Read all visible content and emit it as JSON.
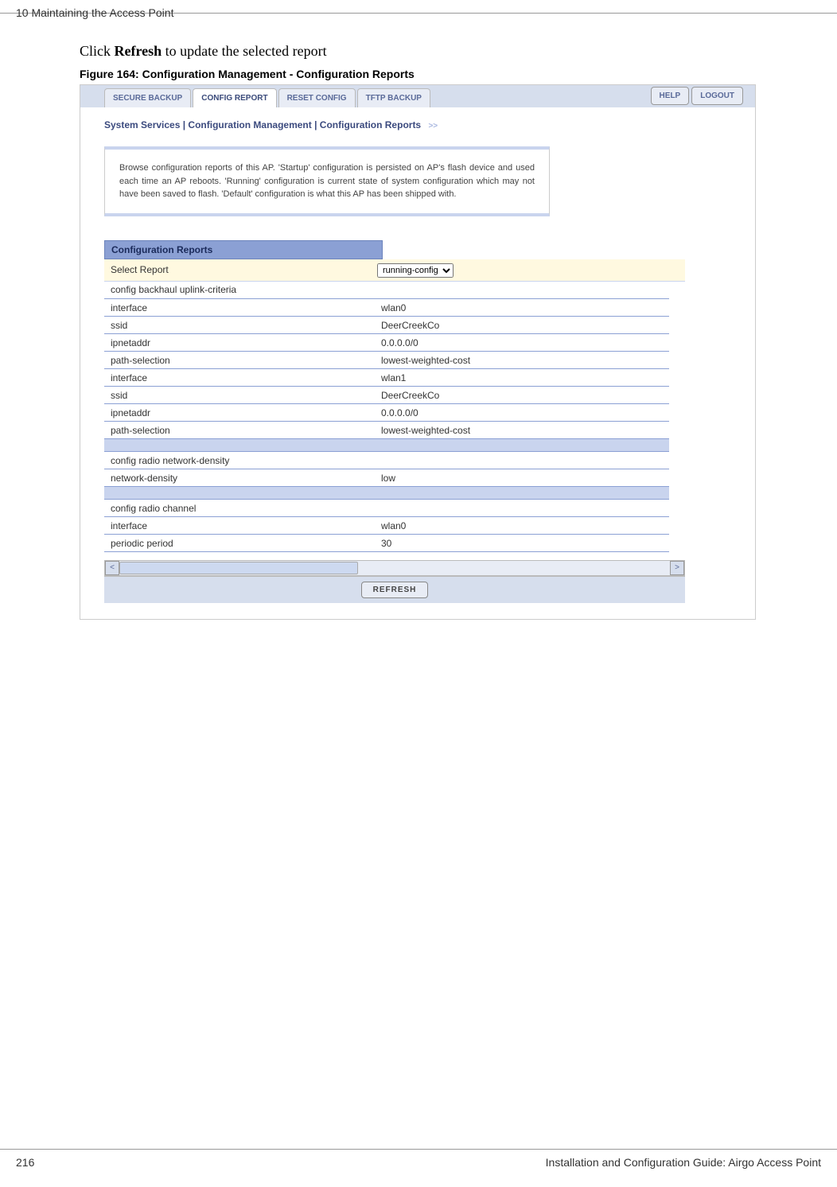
{
  "page_header": {
    "chapter": "10  Maintaining the Access Point"
  },
  "intro": {
    "text_prefix": "Click ",
    "bold": "Refresh",
    "text_suffix": " to update the selected report"
  },
  "figure": {
    "caption": "Figure 164:    Configuration Management - Configuration Reports"
  },
  "tabs": {
    "items": [
      {
        "label": "SECURE BACKUP",
        "active": false
      },
      {
        "label": "CONFIG REPORT",
        "active": true
      },
      {
        "label": "RESET CONFIG",
        "active": false
      },
      {
        "label": "TFTP BACKUP",
        "active": false
      }
    ]
  },
  "header_buttons": {
    "help": "HELP",
    "logout": "LOGOUT"
  },
  "breadcrumb": {
    "text": "System Services | Configuration Management | Configuration Reports"
  },
  "description": {
    "text": "Browse configuration reports of this AP. 'Startup' configuration is persisted on AP's flash device and used each time an AP reboots. 'Running' configuration is current state of system configuration which may not have been saved to flash. 'Default' configuration is what this AP has been shipped with."
  },
  "section": {
    "title": "Configuration Reports"
  },
  "select": {
    "label": "Select Report",
    "options": [
      "running-config"
    ],
    "selected": "running-config"
  },
  "report_rows": [
    {
      "type": "row",
      "key": "config backhaul uplink-criteria",
      "value": ""
    },
    {
      "type": "row",
      "key": "interface",
      "value": "wlan0"
    },
    {
      "type": "row",
      "key": "ssid",
      "value": "DeerCreekCo"
    },
    {
      "type": "row",
      "key": "ipnetaddr",
      "value": "0.0.0.0/0"
    },
    {
      "type": "row",
      "key": "path-selection",
      "value": "lowest-weighted-cost"
    },
    {
      "type": "row",
      "key": "interface",
      "value": "wlan1"
    },
    {
      "type": "row",
      "key": "ssid",
      "value": "DeerCreekCo"
    },
    {
      "type": "row",
      "key": "ipnetaddr",
      "value": "0.0.0.0/0"
    },
    {
      "type": "row",
      "key": "path-selection",
      "value": "lowest-weighted-cost"
    },
    {
      "type": "spacer"
    },
    {
      "type": "row",
      "key": "config radio network-density",
      "value": ""
    },
    {
      "type": "row",
      "key": "network-density",
      "value": "low"
    },
    {
      "type": "spacer"
    },
    {
      "type": "row",
      "key": "config radio channel",
      "value": ""
    },
    {
      "type": "row",
      "key": "interface",
      "value": "wlan0"
    },
    {
      "type": "row",
      "key": "periodic period",
      "value": "30"
    }
  ],
  "refresh": {
    "label": "REFRESH"
  },
  "page_footer": {
    "page_number": "216",
    "text": "Installation and Configuration Guide: Airgo Access Point"
  },
  "styling": {
    "colors": {
      "tab_bg": "#d6deed",
      "tab_active_bg": "#ffffff",
      "tab_text": "#5a6a99",
      "section_header_bg": "#8ba0d4",
      "section_header_text": "#1a2a5a",
      "select_row_bg": "#fff9e0",
      "row_border": "#8ba0d4",
      "spacer_bg": "#c9d4ee",
      "breadcrumb_text": "#3b4a7e",
      "button_bg": "#e8ecf5",
      "desc_border": "#c9d4ee"
    },
    "fonts": {
      "body_font": "Arial",
      "intro_font": "Times New Roman",
      "tab_fontsize": 10,
      "breadcrumb_fontsize": 12,
      "desc_fontsize": 11,
      "table_fontsize": 12
    },
    "layout": {
      "screenshot_width": 850,
      "report_width": 730,
      "key_col_width": 340,
      "scroll_height": 350
    }
  }
}
